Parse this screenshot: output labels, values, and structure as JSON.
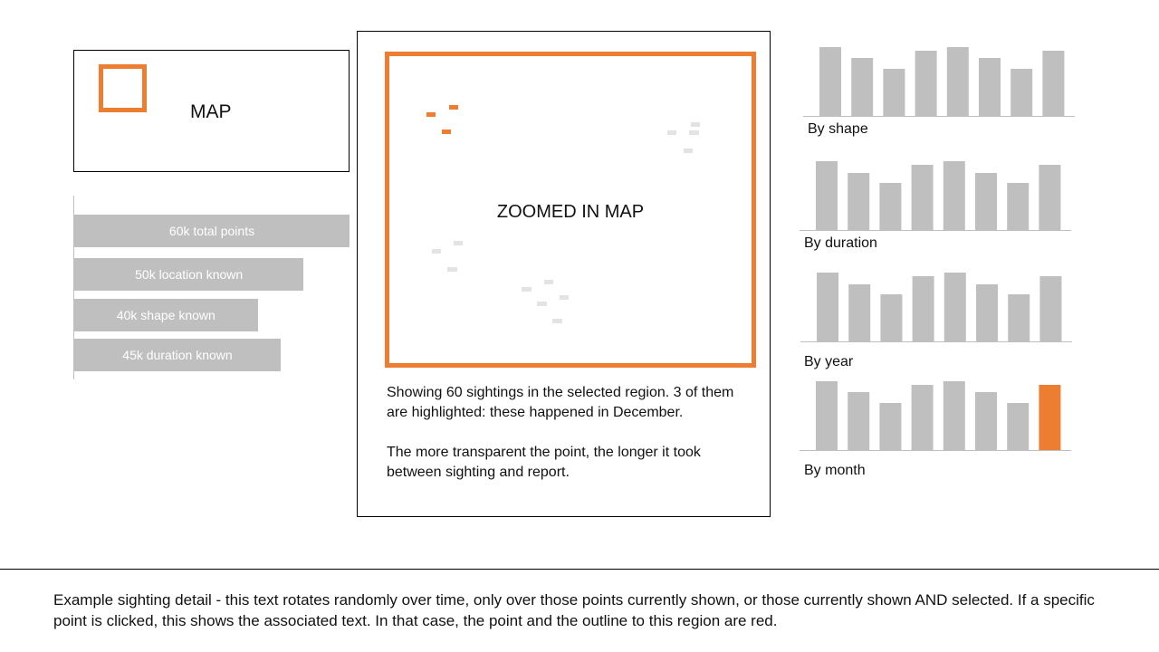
{
  "mini_map": {
    "label": "MAP",
    "highlight_color": "#ed7d31"
  },
  "funnel": {
    "bar_color": "#bfbfbf",
    "max_value": 60,
    "items": [
      {
        "label": "60k total points",
        "value": 60
      },
      {
        "label": "50k location known",
        "value": 50
      },
      {
        "label": "40k shape known",
        "value": 40
      },
      {
        "label": "45k duration known",
        "value": 45
      }
    ]
  },
  "zoom_map": {
    "label": "ZOOMED IN MAP",
    "frame_color": "#ed7d31",
    "highlight_color": "#ed7d31",
    "point_color": "#e3e3e3",
    "description": [
      "Showing 60 sightings in the selected region. 3 of them are highlighted: these happened in December.",
      "The more transparent the point, the longer it took between sighting and report."
    ]
  },
  "chart_data": [
    {
      "type": "bar",
      "label": "By shape",
      "values": [
        76,
        64,
        52,
        72,
        76,
        64,
        52,
        72
      ],
      "highlight_index": null
    },
    {
      "type": "bar",
      "label": "By duration",
      "values": [
        76,
        63,
        52,
        72,
        76,
        63,
        52,
        72
      ],
      "highlight_index": null
    },
    {
      "type": "bar",
      "label": "By year",
      "values": [
        76,
        63,
        52,
        72,
        76,
        63,
        52,
        72
      ],
      "highlight_index": null
    },
    {
      "type": "bar",
      "label": "By month",
      "values": [
        76,
        64,
        52,
        72,
        76,
        64,
        52,
        72
      ],
      "highlight_index": 7
    }
  ],
  "colors": {
    "bar": "#bfbfbf",
    "highlight": "#ed7d31",
    "axis": "#bfbfbf"
  },
  "detail": {
    "text": "Example sighting detail -  this text rotates randomly over time, only over those points currently shown, or those currently shown AND selected. If a specific point is clicked, this shows the associated text. In that case, the point and the outline to this region are red."
  }
}
